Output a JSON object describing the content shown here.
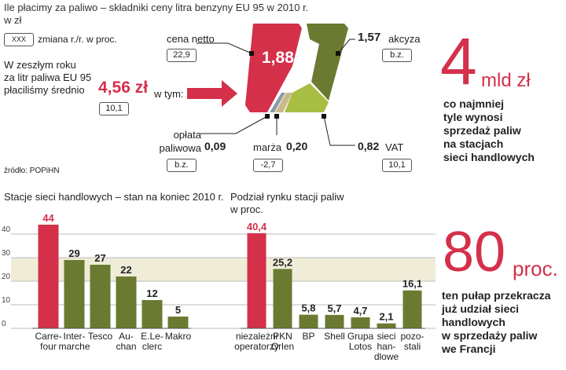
{
  "header": {
    "title": "Ile płacimy za paliwo – składniki ceny litra benzyny EU 95 w 2010 r.",
    "unit": "w zł"
  },
  "legend": {
    "box": "XXX",
    "text": "zmiana r./r. w proc."
  },
  "intro": {
    "text": "W zeszłym roku\nza litr paliwa EU 95\npłaciliśmy średnio",
    "price": "4,56 zł",
    "change": "10,1",
    "in_which": "w tym:"
  },
  "components": [
    {
      "name": "cena netto",
      "value": "1,88",
      "change": "22,9"
    },
    {
      "name": "akcyza",
      "value": "1,57",
      "change": "b.z."
    },
    {
      "name": "opłata\npaliwowa",
      "value": "0,09",
      "change": "b.z."
    },
    {
      "name": "marża",
      "value": "0,20",
      "change": "-2,7"
    },
    {
      "name": "VAT",
      "value": "0,82",
      "change": "10,1"
    }
  ],
  "source": "źródło: POPiHN",
  "fact1": {
    "number": "4",
    "unit": "mld zł",
    "text": "co najmniej\ntyle wynosi\nsprzedaż paliw\nna stacjach\nsieci handlowych"
  },
  "fact2": {
    "number": "80",
    "unit": "proc.",
    "text": "ten pułap przekracza\njuż udział sieci\nhandlowych\nw sprzedaży paliw\nwe Francji"
  },
  "chart_data": [
    {
      "type": "bar",
      "title": "Stacje sieci handlowych – stan na koniec 2010 r.",
      "categories": [
        "Carre-\nfour",
        "Inter-\nmarche",
        "Tesco",
        "Au-\nchan",
        "E.Le-\nclerc",
        "Makro"
      ],
      "values": [
        44,
        29,
        27,
        22,
        12,
        5
      ],
      "colors": [
        "#d4304a",
        "#6b7a31",
        "#6b7a31",
        "#6b7a31",
        "#6b7a31",
        "#6b7a31"
      ],
      "ylim": [
        0,
        40
      ],
      "yticks": [
        0,
        10,
        20,
        30,
        40
      ],
      "grid": true
    },
    {
      "type": "bar",
      "title": "Podział rynku stacji paliw",
      "subtitle": "w proc.",
      "categories": [
        "niezależni\noperatorzy",
        "PKN\nOrlen",
        "BP",
        "Shell",
        "Grupa\nLotos",
        "sieci\nhan-\ndlowe",
        "pozo-\nstali"
      ],
      "values": [
        40.4,
        25.2,
        5.8,
        5.7,
        4.7,
        2.1,
        16.1
      ],
      "value_labels": [
        "40,4",
        "25,2",
        "5,8",
        "5,7",
        "4,7",
        "2,1",
        "16,1"
      ],
      "colors": [
        "#d4304a",
        "#6b7a31",
        "#6b7a31",
        "#6b7a31",
        "#6b7a31",
        "#6b7a31",
        "#6b7a31"
      ],
      "ylim": [
        0,
        40
      ]
    }
  ]
}
